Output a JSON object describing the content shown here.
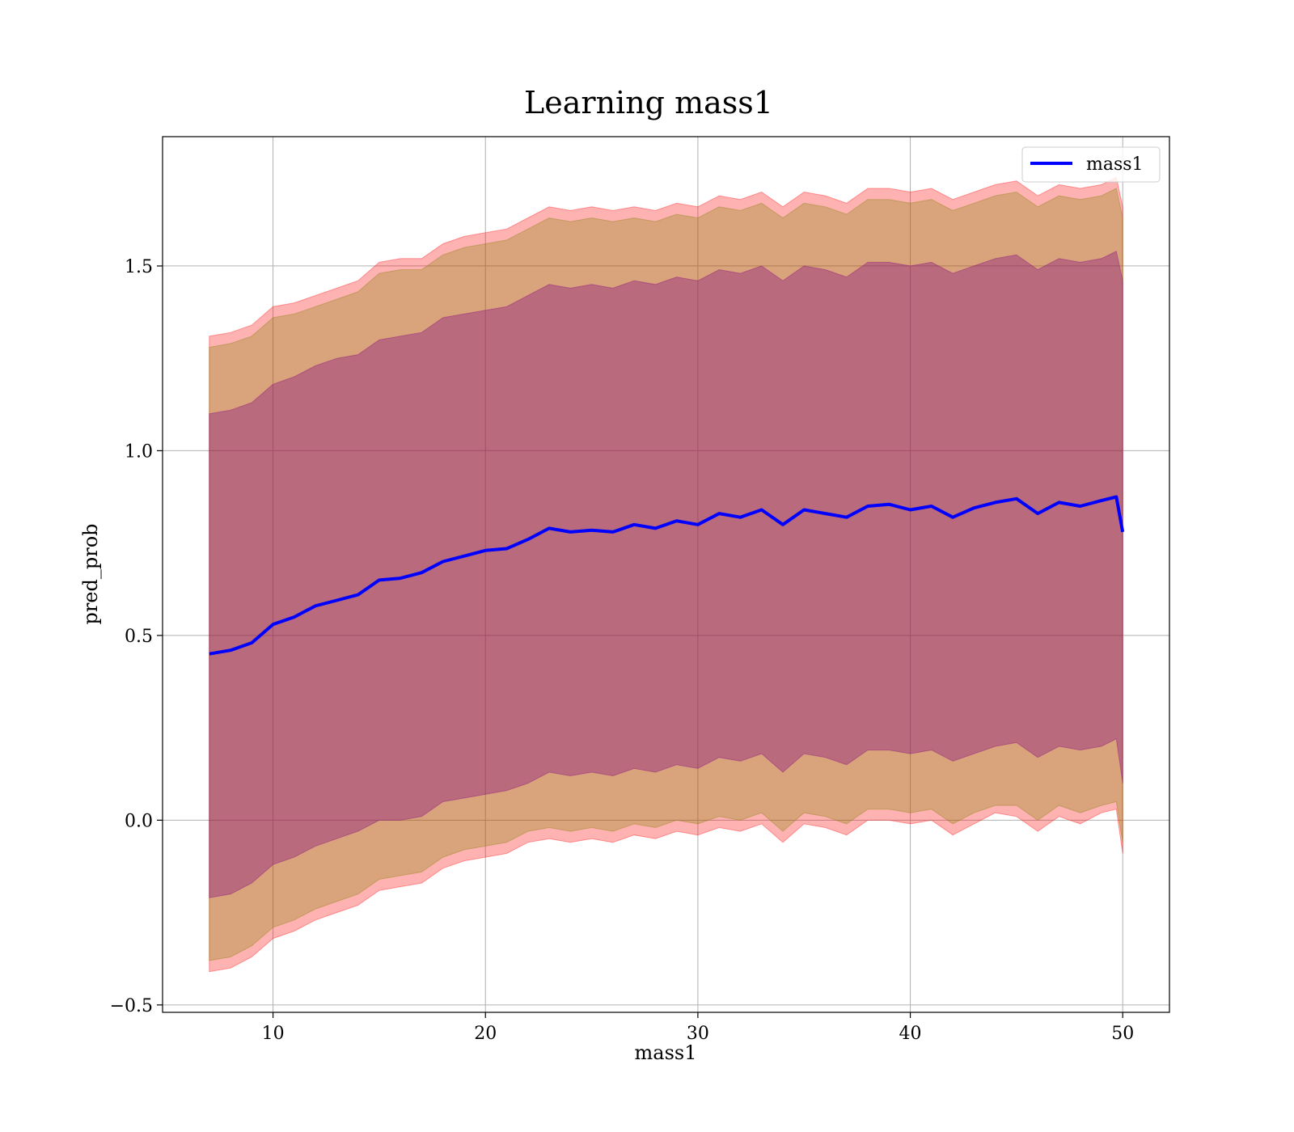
{
  "chart_data": {
    "type": "line",
    "title": "Learning mass1",
    "xlabel": "mass1",
    "ylabel": "pred_prob",
    "xlim": [
      4.8,
      52.2
    ],
    "ylim": [
      -0.52,
      1.85
    ],
    "xticks": [
      10,
      20,
      30,
      40,
      50
    ],
    "xtick_labels": [
      "10",
      "20",
      "30",
      "40",
      "50"
    ],
    "yticks": [
      -0.5,
      0.0,
      0.5,
      1.0,
      1.5
    ],
    "ytick_labels": [
      "−0.5",
      "0.0",
      "0.5",
      "1.0",
      "1.5"
    ],
    "grid": true,
    "legend": {
      "position": "top-right",
      "entries": [
        "mass1"
      ]
    },
    "colors": {
      "line": "#0000ff",
      "band_outer": "#ff0000",
      "band_mid": "#808000",
      "band_inner": "#800080",
      "grid": "#b0b0b0"
    },
    "x": [
      7,
      8,
      9,
      10,
      11,
      12,
      13,
      14,
      15,
      16,
      17,
      18,
      19,
      20,
      21,
      22,
      23,
      24,
      25,
      26,
      27,
      28,
      29,
      30,
      31,
      32,
      33,
      34,
      35,
      36,
      37,
      38,
      39,
      40,
      41,
      42,
      43,
      44,
      45,
      46,
      47,
      48,
      49,
      49.7,
      50
    ],
    "series": [
      {
        "name": "mass1",
        "values": [
          0.45,
          0.46,
          0.48,
          0.53,
          0.55,
          0.58,
          0.595,
          0.61,
          0.65,
          0.655,
          0.67,
          0.7,
          0.715,
          0.73,
          0.735,
          0.76,
          0.79,
          0.78,
          0.785,
          0.78,
          0.8,
          0.79,
          0.81,
          0.8,
          0.83,
          0.82,
          0.84,
          0.8,
          0.84,
          0.83,
          0.82,
          0.85,
          0.855,
          0.84,
          0.85,
          0.82,
          0.845,
          0.86,
          0.87,
          0.83,
          0.86,
          0.85,
          0.865,
          0.875,
          0.78
        ]
      }
    ],
    "bands": [
      {
        "name": "outer",
        "lower": [
          -0.41,
          -0.4,
          -0.37,
          -0.32,
          -0.3,
          -0.27,
          -0.25,
          -0.23,
          -0.19,
          -0.18,
          -0.17,
          -0.13,
          -0.11,
          -0.1,
          -0.09,
          -0.06,
          -0.05,
          -0.06,
          -0.05,
          -0.06,
          -0.04,
          -0.05,
          -0.03,
          -0.04,
          -0.02,
          -0.03,
          -0.01,
          -0.06,
          -0.01,
          -0.02,
          -0.04,
          0.0,
          0.0,
          -0.01,
          0.0,
          -0.04,
          -0.01,
          0.02,
          0.01,
          -0.03,
          0.01,
          -0.01,
          0.02,
          0.03,
          -0.09
        ],
        "upper": [
          1.31,
          1.32,
          1.34,
          1.39,
          1.4,
          1.42,
          1.44,
          1.46,
          1.51,
          1.52,
          1.52,
          1.56,
          1.58,
          1.59,
          1.6,
          1.63,
          1.66,
          1.65,
          1.66,
          1.65,
          1.66,
          1.65,
          1.67,
          1.66,
          1.69,
          1.68,
          1.7,
          1.66,
          1.7,
          1.69,
          1.67,
          1.71,
          1.71,
          1.7,
          1.71,
          1.68,
          1.7,
          1.72,
          1.73,
          1.69,
          1.72,
          1.71,
          1.72,
          1.74,
          1.66
        ]
      },
      {
        "name": "middle",
        "lower": [
          -0.38,
          -0.37,
          -0.34,
          -0.29,
          -0.27,
          -0.24,
          -0.22,
          -0.2,
          -0.16,
          -0.15,
          -0.14,
          -0.1,
          -0.08,
          -0.07,
          -0.06,
          -0.03,
          -0.02,
          -0.03,
          -0.02,
          -0.03,
          -0.01,
          -0.02,
          0.0,
          -0.01,
          0.01,
          0.0,
          0.02,
          -0.03,
          0.02,
          0.01,
          -0.01,
          0.03,
          0.03,
          0.02,
          0.03,
          -0.01,
          0.02,
          0.04,
          0.04,
          0.0,
          0.04,
          0.02,
          0.04,
          0.05,
          -0.06
        ],
        "upper": [
          1.28,
          1.29,
          1.31,
          1.36,
          1.37,
          1.39,
          1.41,
          1.43,
          1.48,
          1.49,
          1.49,
          1.53,
          1.55,
          1.56,
          1.57,
          1.6,
          1.63,
          1.62,
          1.63,
          1.62,
          1.63,
          1.62,
          1.64,
          1.63,
          1.66,
          1.65,
          1.67,
          1.63,
          1.67,
          1.66,
          1.64,
          1.68,
          1.68,
          1.67,
          1.68,
          1.65,
          1.67,
          1.69,
          1.7,
          1.66,
          1.69,
          1.68,
          1.69,
          1.71,
          1.63
        ]
      },
      {
        "name": "inner",
        "lower": [
          -0.21,
          -0.2,
          -0.17,
          -0.12,
          -0.1,
          -0.07,
          -0.05,
          -0.03,
          0.0,
          0.0,
          0.01,
          0.05,
          0.06,
          0.07,
          0.08,
          0.1,
          0.13,
          0.12,
          0.13,
          0.12,
          0.14,
          0.13,
          0.15,
          0.14,
          0.17,
          0.16,
          0.18,
          0.13,
          0.18,
          0.17,
          0.15,
          0.19,
          0.19,
          0.18,
          0.19,
          0.16,
          0.18,
          0.2,
          0.21,
          0.17,
          0.2,
          0.19,
          0.2,
          0.22,
          0.1
        ],
        "upper": [
          1.1,
          1.11,
          1.13,
          1.18,
          1.2,
          1.23,
          1.25,
          1.26,
          1.3,
          1.31,
          1.32,
          1.36,
          1.37,
          1.38,
          1.39,
          1.42,
          1.45,
          1.44,
          1.45,
          1.44,
          1.46,
          1.45,
          1.47,
          1.46,
          1.49,
          1.48,
          1.5,
          1.46,
          1.5,
          1.49,
          1.47,
          1.51,
          1.51,
          1.5,
          1.51,
          1.48,
          1.5,
          1.52,
          1.53,
          1.49,
          1.52,
          1.51,
          1.52,
          1.54,
          1.46
        ]
      }
    ]
  }
}
